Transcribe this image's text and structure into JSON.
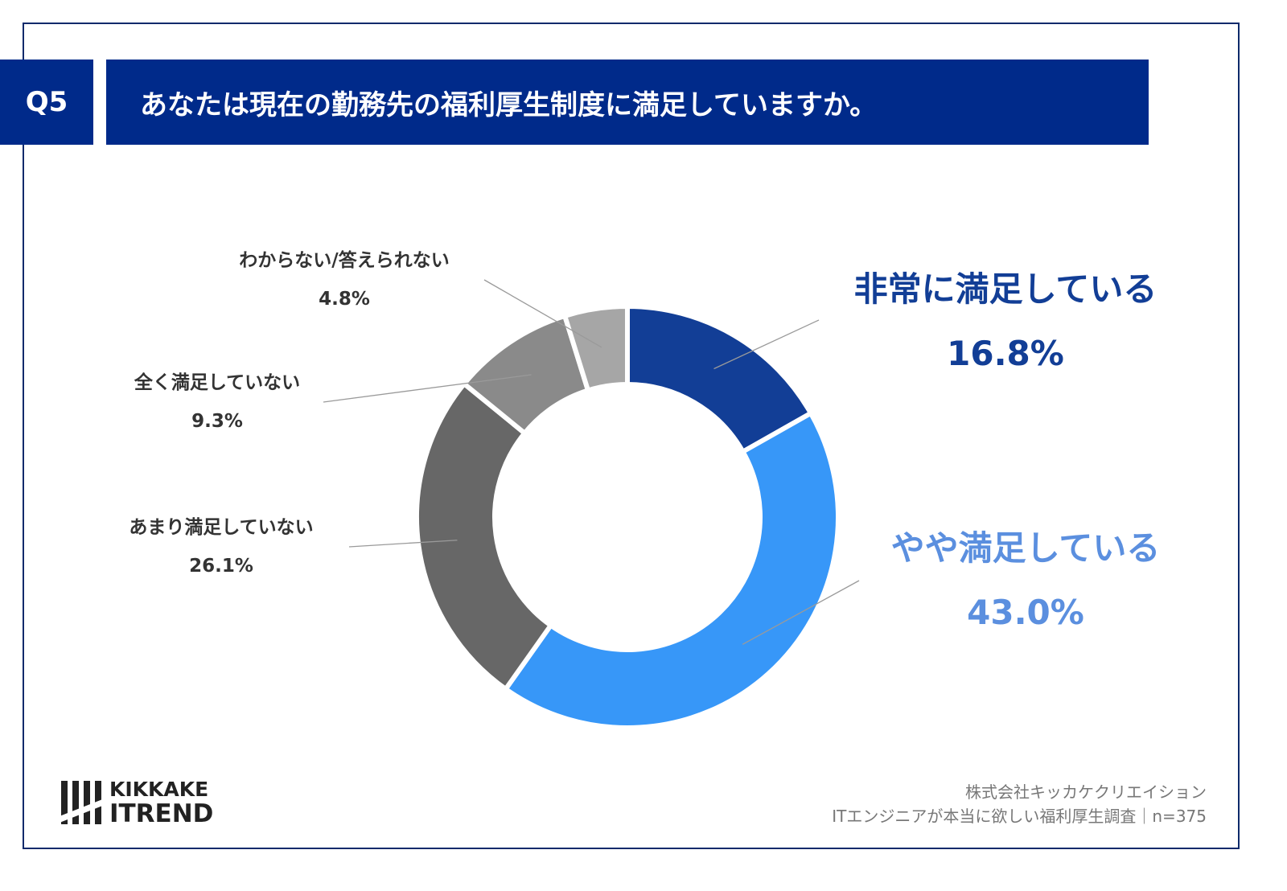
{
  "header": {
    "question_no": "Q5",
    "title": "あなたは現在の勤務先の福利厚生制度に満足していますか。"
  },
  "chart_data": {
    "type": "pie",
    "donut": true,
    "title": "",
    "slices": [
      {
        "label": "非常に満足している",
        "value": 16.8,
        "display": "16.8%",
        "color": "#123e96",
        "label_color": "#123e96"
      },
      {
        "label": "やや満足している",
        "value": 43.0,
        "display": "43.0%",
        "color": "#3797f8",
        "label_color": "#5b8fdf"
      },
      {
        "label": "あまり満足していない",
        "value": 26.1,
        "display": "26.1%",
        "color": "#676767",
        "label_color": "#333333"
      },
      {
        "label": "全く満足していない",
        "value": 9.3,
        "display": "9.3%",
        "color": "#8a8a8a",
        "label_color": "#333333"
      },
      {
        "label": "わからない/答えられない",
        "value": 4.8,
        "display": "4.8%",
        "color": "#a6a6a6",
        "label_color": "#333333"
      }
    ]
  },
  "logo": {
    "line1": "KIKKAKE",
    "line2": "ITREND"
  },
  "footer": {
    "company": "株式会社キッカケクリエイション",
    "survey": "ITエンジニアが本当に欲しい福利厚生調査｜n=375"
  }
}
